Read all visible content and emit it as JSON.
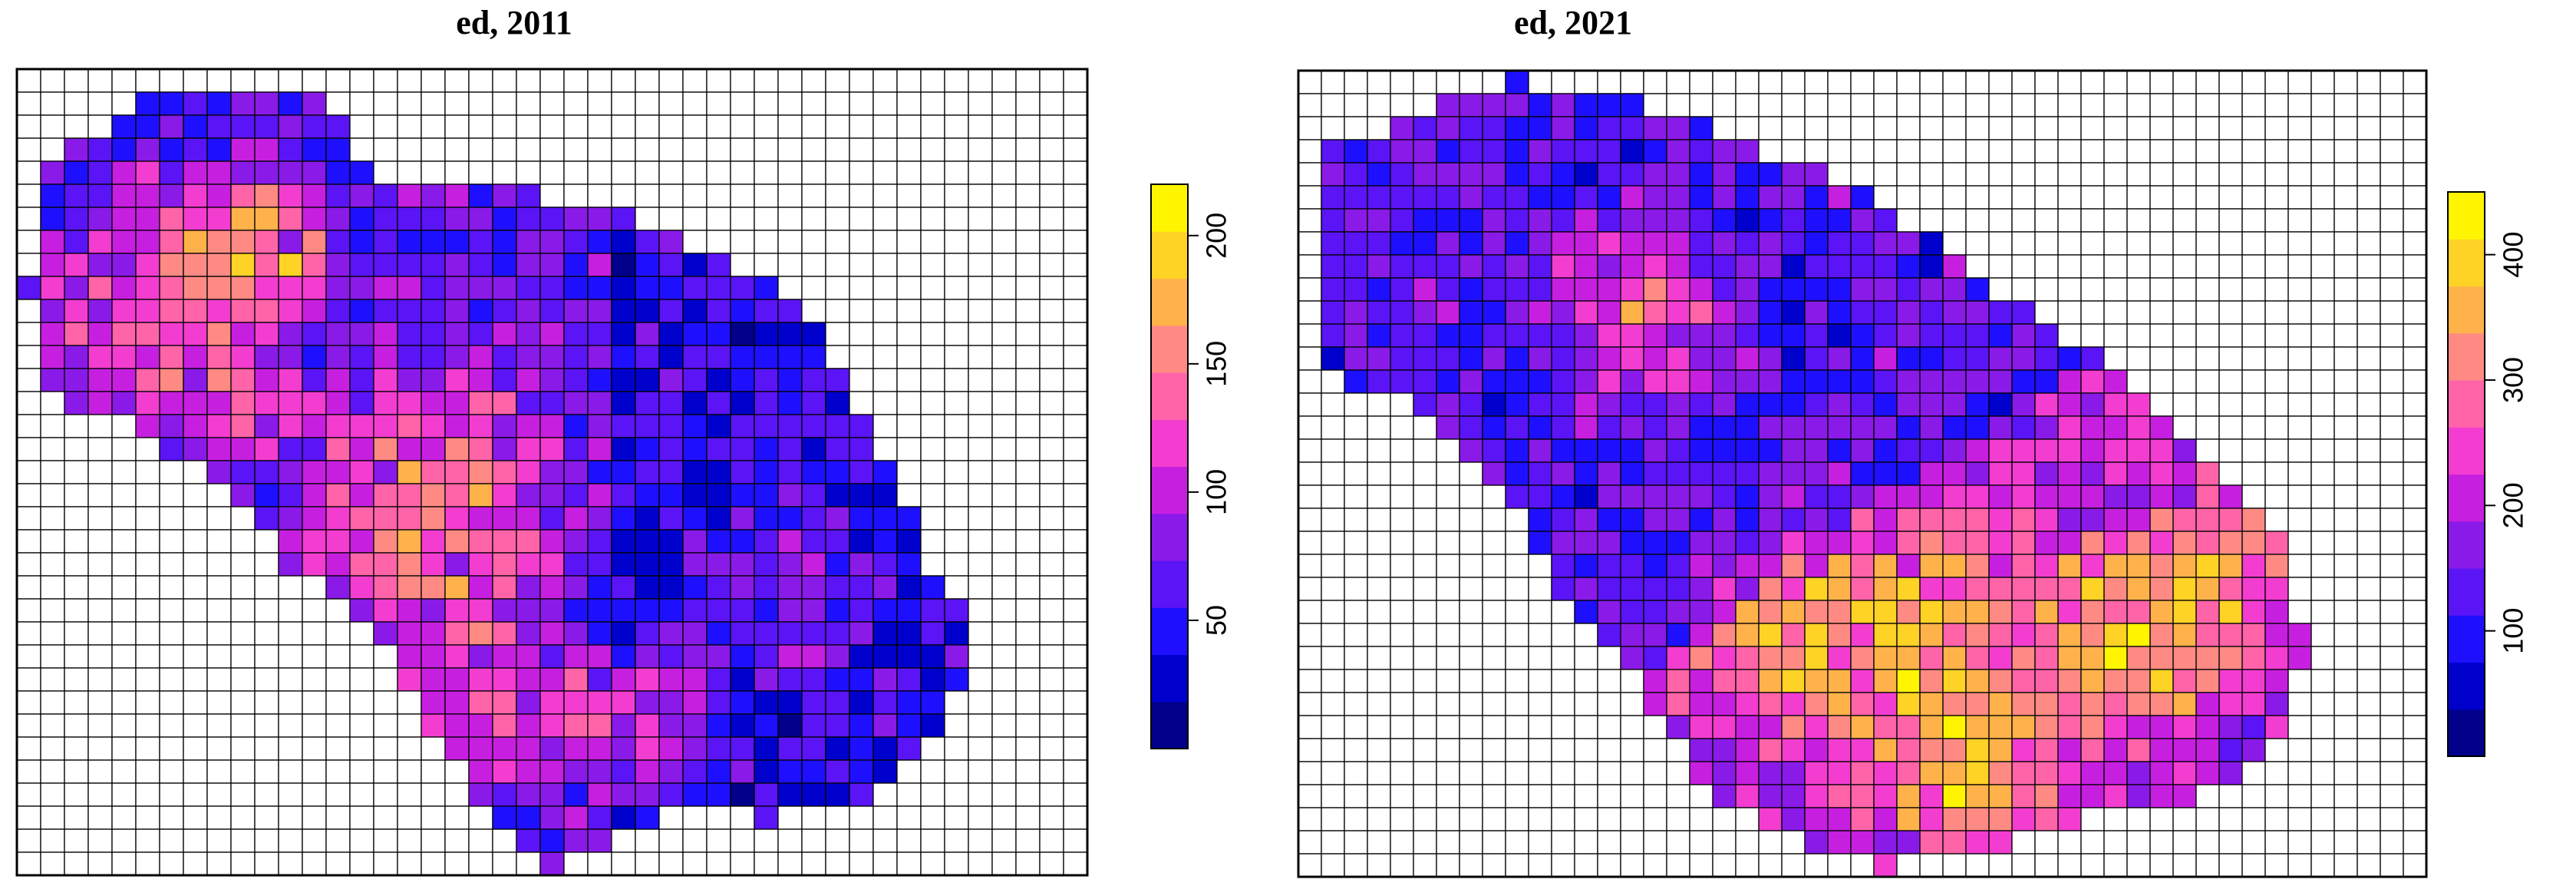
{
  "chart_data": [
    {
      "type": "heatmap",
      "title": "ed, 2011",
      "grid": true,
      "legend_placement": "right",
      "colorbar": {
        "ticks": [
          50,
          100,
          150,
          200
        ],
        "min": 0,
        "max": 220
      },
      "palette": [
        "#00008B",
        "#0000CD",
        "#1E10FF",
        "#5A14F5",
        "#8A1AE8",
        "#C71FE0",
        "#F23DD0",
        "#FF64A8",
        "#FF8A84",
        "#FFB24A",
        "#FFD226",
        "#FFF500"
      ]
    },
    {
      "type": "heatmap",
      "title": "ed, 2021",
      "grid": true,
      "legend_placement": "right",
      "colorbar": {
        "ticks": [
          100,
          200,
          300,
          400
        ],
        "min": 0,
        "max": 450
      },
      "palette": [
        "#00008B",
        "#0000CD",
        "#1E10FF",
        "#5A14F5",
        "#8A1AE8",
        "#C71FE0",
        "#F23DD0",
        "#FF64A8",
        "#FF8A84",
        "#FFB24A",
        "#FFD226",
        "#FFF500"
      ]
    }
  ]
}
